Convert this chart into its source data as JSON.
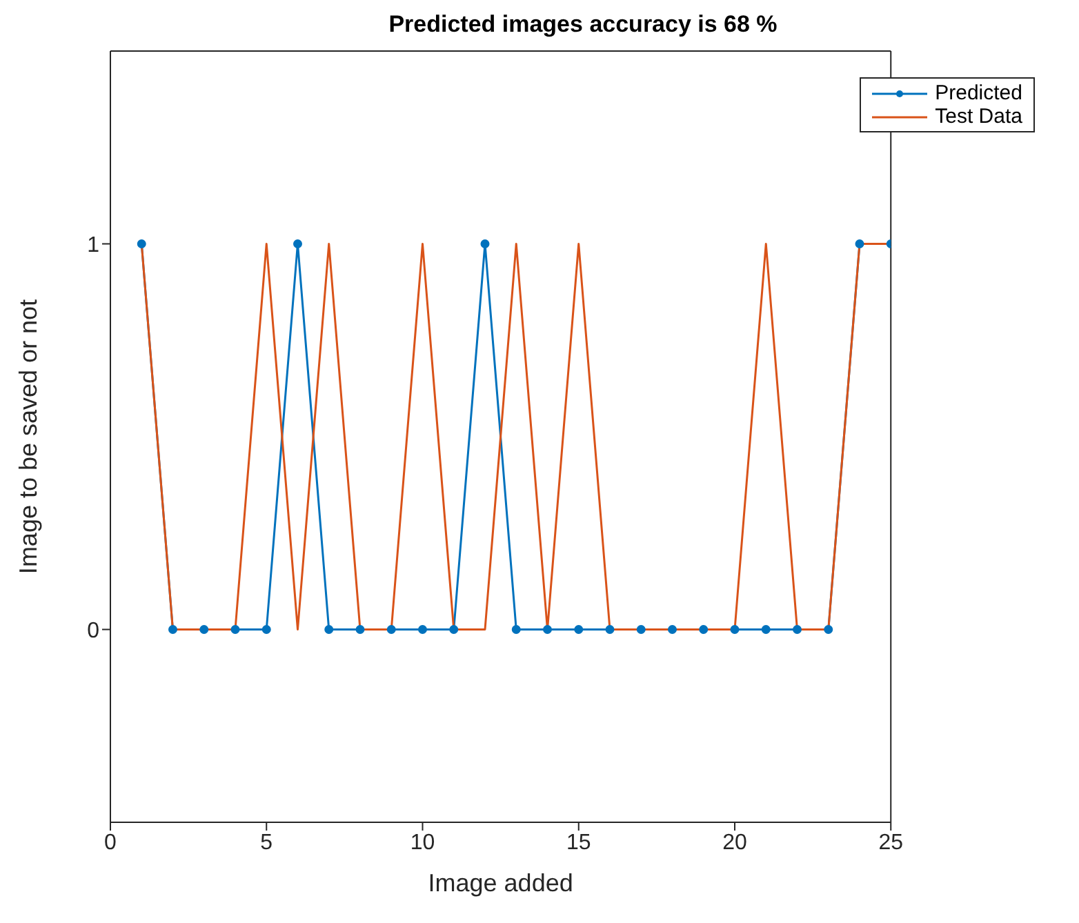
{
  "chart_data": {
    "type": "line",
    "title": "Predicted images accuracy is 68 %",
    "xlabel": "Image added",
    "ylabel": "Image to be saved or not",
    "x": [
      1,
      2,
      3,
      4,
      5,
      6,
      7,
      8,
      9,
      10,
      11,
      12,
      13,
      14,
      15,
      16,
      17,
      18,
      19,
      20,
      21,
      22,
      23,
      24,
      25
    ],
    "series": [
      {
        "name": "Predicted",
        "color": "#0072bd",
        "marker": "circle",
        "values": [
          1,
          0,
          0,
          0,
          0,
          1,
          0,
          0,
          0,
          0,
          0,
          1,
          0,
          0,
          0,
          0,
          0,
          0,
          0,
          0,
          0,
          0,
          0,
          1,
          1
        ]
      },
      {
        "name": "Test Data",
        "color": "#d95319",
        "marker": "none",
        "values": [
          1,
          0,
          0,
          0,
          1,
          0,
          1,
          0,
          0,
          1,
          0,
          0,
          1,
          0,
          1,
          0,
          0,
          0,
          0,
          0,
          1,
          0,
          0,
          1,
          1
        ]
      }
    ],
    "xlim": [
      0,
      25
    ],
    "xticks": [
      0,
      5,
      10,
      15,
      20,
      25
    ],
    "ylim": [
      -0.5,
      1.5
    ],
    "yticks": [
      0,
      1
    ],
    "grid": false,
    "legend": "top right",
    "line_style": "solid"
  }
}
